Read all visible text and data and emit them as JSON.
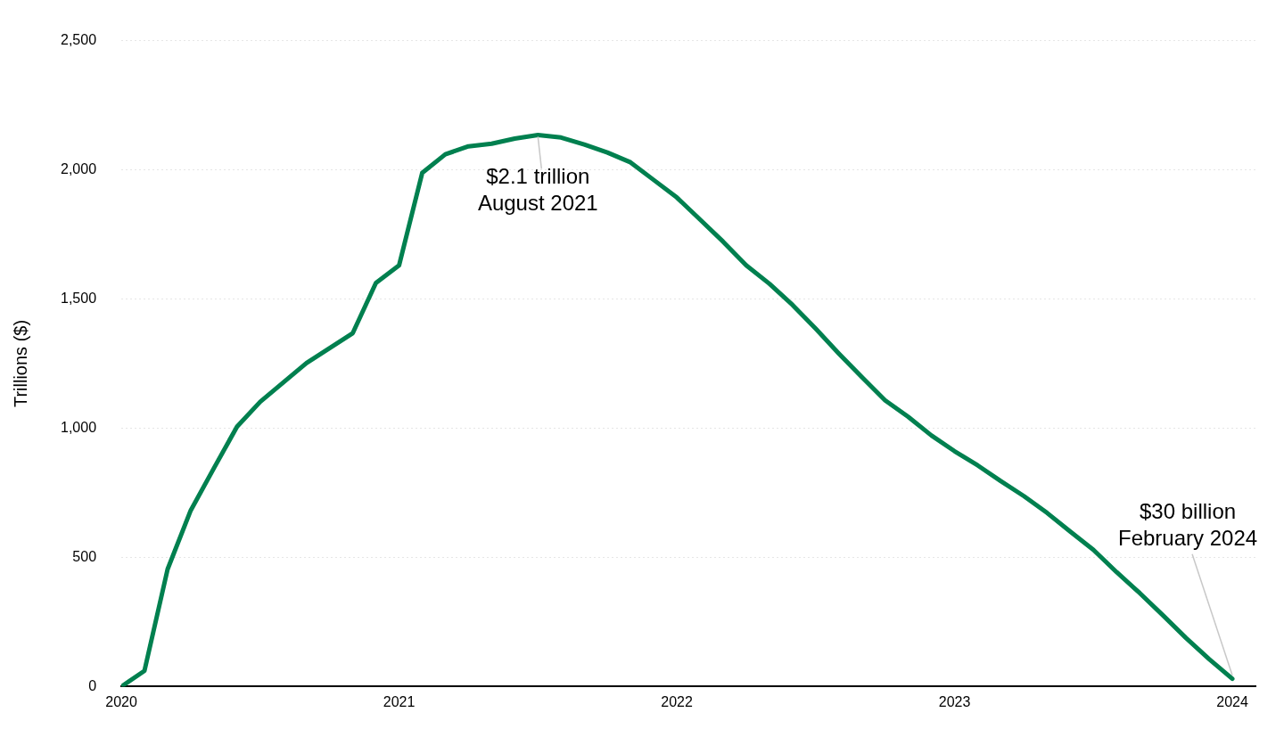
{
  "chart_data": {
    "type": "line",
    "ylabel": "Trillions ($)",
    "x": [
      "2020-01",
      "2020-02",
      "2020-03",
      "2020-04",
      "2020-05",
      "2020-06",
      "2020-07",
      "2020-08",
      "2020-09",
      "2020-10",
      "2020-11",
      "2020-12",
      "2021-01",
      "2021-02",
      "2021-03",
      "2021-04",
      "2021-05",
      "2021-06",
      "2021-07",
      "2021-08",
      "2021-09",
      "2021-10",
      "2021-11",
      "2021-12",
      "2022-01",
      "2022-02",
      "2022-03",
      "2022-04",
      "2022-05",
      "2022-06",
      "2022-07",
      "2022-08",
      "2022-09",
      "2022-10",
      "2022-11",
      "2022-12",
      "2023-01",
      "2023-02",
      "2023-03",
      "2023-04",
      "2023-05",
      "2023-06",
      "2023-07",
      "2023-08",
      "2023-09",
      "2023-10",
      "2023-11",
      "2023-12",
      "2024-01"
    ],
    "series": [
      {
        "color": "#00804f",
        "values": [
          0,
          61,
          454,
          682,
          845,
          1006,
          1102,
          1177,
          1252,
          1310,
          1368,
          1562,
          1630,
          1988,
          2060,
          2091,
          2101,
          2121,
          2135,
          2125,
          2098,
          2067,
          2029,
          1961,
          1893,
          1808,
          1722,
          1630,
          1559,
          1477,
          1385,
          1289,
          1197,
          1108,
          1044,
          972,
          911,
          856,
          795,
          737,
          672,
          600,
          529,
          443,
          362,
          276,
          188,
          106,
          30
        ]
      }
    ],
    "xlim": [
      "2020",
      "2024-02"
    ],
    "xticks": [
      "2020",
      "2021",
      "2022",
      "2023",
      "2024"
    ],
    "ylim": [
      0,
      2500
    ],
    "yticks": [
      {
        "value": 0,
        "label": "0"
      },
      {
        "value": 500,
        "label": "500"
      },
      {
        "value": 1000,
        "label": "1,000"
      },
      {
        "value": 1500,
        "label": "1,500"
      },
      {
        "value": 2000,
        "label": "2,000"
      },
      {
        "value": 2500,
        "label": "2,500"
      }
    ],
    "grid": "y",
    "legend": false,
    "marker": "none",
    "line_style": "solid",
    "annotations": [
      {
        "text": "$2.1 trillion\nAugust 2021",
        "x": "2021-07",
        "y": 2135
      },
      {
        "text": "$30 billion\nFebruary 2024",
        "x": "2024-01",
        "y": 30
      }
    ]
  }
}
